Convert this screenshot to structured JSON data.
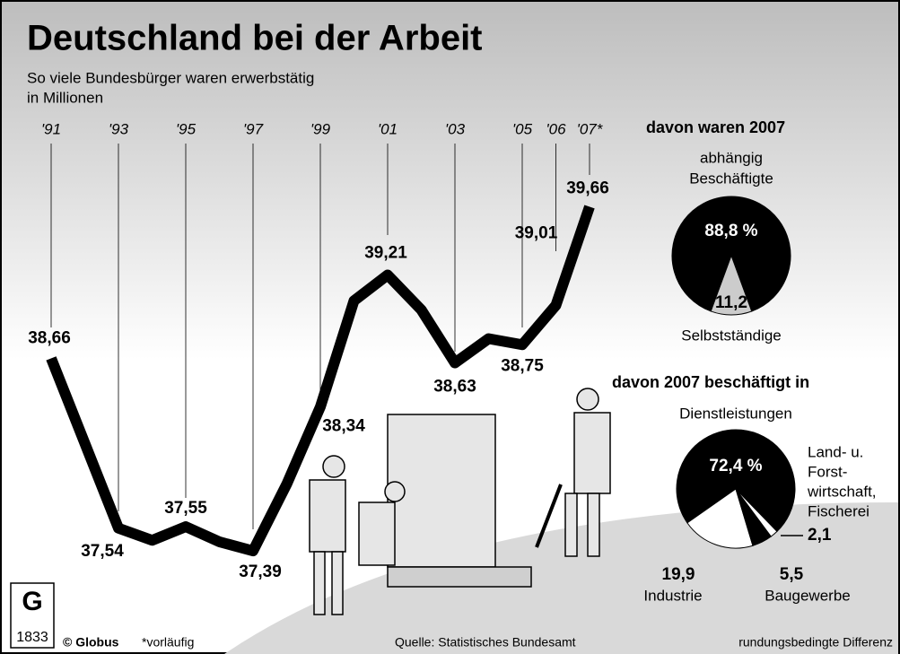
{
  "title": "Deutschland bei der Arbeit",
  "subtitle": [
    "So viele Bundesbürger waren erwerbstätig",
    "in Millionen"
  ],
  "chart_data": [
    {
      "type": "line",
      "categories": [
        "'91",
        null,
        "'93",
        null,
        "'95",
        null,
        "'97",
        null,
        "'99",
        null,
        "'01",
        null,
        "'03",
        null,
        "'05",
        "'06",
        "'07*"
      ],
      "values": [
        38.66,
        38.1,
        37.54,
        37.46,
        37.55,
        37.45,
        37.39,
        37.83,
        38.34,
        39.04,
        39.21,
        38.98,
        38.63,
        38.79,
        38.75,
        39.01,
        39.66
      ],
      "value_labels": [
        "38,66",
        null,
        "37,54",
        null,
        "37,55",
        null,
        "37,39",
        null,
        "38,34",
        null,
        "39,21",
        null,
        "38,63",
        null,
        "38,75",
        "39,01",
        "39,66"
      ],
      "ylim": [
        37.0,
        40.0
      ],
      "color": "#000000"
    },
    {
      "type": "pie",
      "title": "davon waren 2007",
      "names": [
        [
          "abhängig",
          "Beschäftigte"
        ],
        [
          "Selbstständige"
        ]
      ],
      "values": [
        88.8,
        11.2
      ],
      "value_labels": [
        "88,8 %",
        "11,2"
      ],
      "colors": [
        "#000000",
        "#cccccc"
      ]
    },
    {
      "type": "pie",
      "title": "davon 2007 beschäftigt in",
      "names": [
        [
          "Dienstleistungen"
        ],
        [
          "Industrie"
        ],
        [
          "Baugewerbe"
        ],
        [
          "Land- u.",
          "Forst-",
          "wirtschaft,",
          "Fischerei"
        ]
      ],
      "values": [
        72.4,
        19.9,
        5.5,
        2.1
      ],
      "value_labels": [
        "72,4 %",
        "19,9",
        "5,5",
        "2,1"
      ],
      "colors": [
        "#000000",
        "#ffffff",
        "#000000",
        "#ffffff"
      ]
    }
  ],
  "footer": {
    "logo_year": "1833",
    "copyright": "© Globus",
    "note": "*vorläufig",
    "source": "Quelle: Statistisches Bundesamt",
    "remark": "rundungsbedingte Differenz"
  }
}
